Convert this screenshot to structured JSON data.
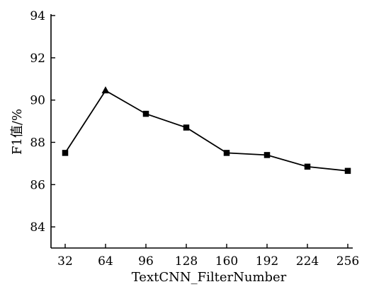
{
  "chart_data": {
    "type": "line",
    "xlabel": "TextCNN_FilterNumber",
    "ylabel": "F1值/%",
    "categories": [
      "32",
      "64",
      "96",
      "128",
      "160",
      "192",
      "224",
      "256"
    ],
    "series": [
      {
        "values": [
          87.5,
          90.45,
          89.35,
          88.7,
          87.5,
          87.4,
          86.85,
          86.65
        ],
        "markers": [
          "square",
          "triangle",
          "square",
          "square",
          "square",
          "square",
          "square",
          "square"
        ]
      }
    ],
    "ylim": [
      83,
      94
    ],
    "yticks": [
      84,
      86,
      88,
      90,
      92,
      94
    ],
    "grid": false,
    "color": "#000000"
  }
}
